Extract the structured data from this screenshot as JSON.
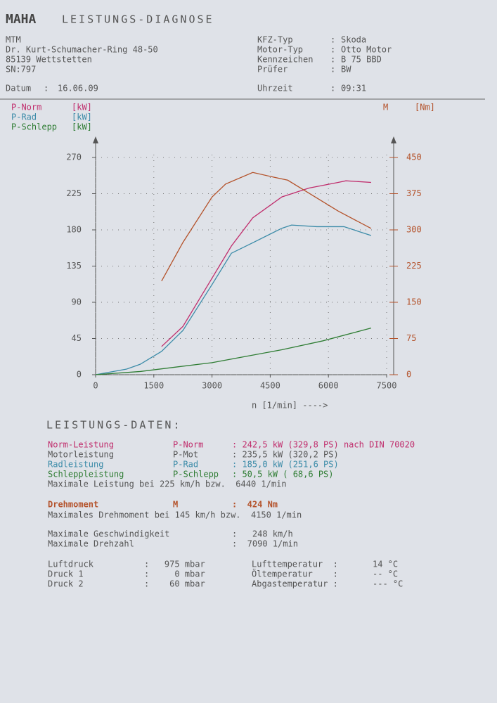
{
  "header": {
    "logo": "MAHA",
    "title": "LEISTUNGS-DIAGNOSE",
    "address": [
      "MTM",
      "Dr. Kurt-Schumacher-Ring 48-50",
      "85139 Wettstetten",
      "SN:797"
    ],
    "date": {
      "label": "Datum",
      "value": "16.06.09"
    },
    "info": [
      {
        "label": "KFZ-Typ",
        "value": "Skoda"
      },
      {
        "label": "Motor-Typ",
        "value": "Otto Motor"
      },
      {
        "label": "Kennzeichen",
        "value": "B 75 BBD"
      },
      {
        "label": "Prüfer",
        "value": "BW"
      }
    ],
    "time": {
      "label": "Uhrzeit",
      "value": "09:31"
    }
  },
  "chart_data": {
    "type": "line",
    "xlabel": "n [1/min] ---->",
    "xlim": [
      0,
      7500
    ],
    "xticks": [
      0,
      1500,
      3000,
      4500,
      6000,
      7500
    ],
    "ylim": [
      0,
      270
    ],
    "yticks": [
      0,
      45,
      90,
      135,
      180,
      225,
      270
    ],
    "y2lim": [
      0,
      450
    ],
    "y2ticks": [
      0,
      75,
      150,
      225,
      300,
      375,
      450
    ],
    "grid": true,
    "series": [
      {
        "name": "P-Norm",
        "unit": "[kW]",
        "color": "#c02d6c",
        "x": [
          1700,
          2250,
          3000,
          3500,
          4050,
          4800,
          5500,
          6250,
          6450,
          7100
        ],
        "values": [
          35,
          60,
          120,
          160,
          195,
          221,
          232,
          239,
          241,
          239
        ]
      },
      {
        "name": "P-Rad",
        "unit": "[kW]",
        "color": "#3b8ba8",
        "x": [
          0,
          800,
          1150,
          1700,
          2250,
          3000,
          3500,
          4050,
          4800,
          5050,
          5700,
          6400,
          7100
        ],
        "values": [
          0,
          7,
          13,
          29,
          55,
          112,
          151,
          164,
          182,
          186,
          184,
          184,
          173
        ]
      },
      {
        "name": "P-Schlepp",
        "unit": "[kW]",
        "color": "#2f7d34",
        "x": [
          0,
          1150,
          3000,
          4800,
          5850,
          7100
        ],
        "values": [
          0,
          4,
          15,
          31,
          42,
          58
        ]
      },
      {
        "name": "M",
        "unit": "[Nm]",
        "color": "#b4522a",
        "axis": "y2",
        "x": [
          1700,
          2250,
          3000,
          3350,
          4050,
          4600,
          4950,
          5500,
          6250,
          7100
        ],
        "values": [
          194,
          274,
          368,
          395,
          419,
          409,
          403,
          376,
          339,
          303
        ]
      }
    ]
  },
  "results": {
    "title": "LEISTUNGS-DATEN:",
    "power": [
      [
        "Norm-Leistung",
        "P-Norm",
        ": 242,5 kW (329,8 PS) nach DIN 70020"
      ],
      [
        "Motorleistung",
        "P-Mot",
        ": 235,5 kW (320,2 PS)"
      ],
      [
        "Radleistung",
        "P-Rad",
        ": 185,0 kW (251,6 PS)"
      ],
      [
        "Schleppleistung",
        "P-Schlepp",
        ": 50,5 kW ( 68,6 PS)"
      ]
    ],
    "max_power": "Maximale Leistung bei 225 km/h bzw.  6440 1/min",
    "torque": [
      "Drehmoment",
      "M",
      ":  424 Nm"
    ],
    "max_torque": "Maximales Drehmoment bei 145 km/h bzw.  4150 1/min",
    "speed": [
      [
        "Maximale Geschwindigkeit",
        ":   248 km/h"
      ],
      [
        "Maximale Drehzahl",
        ":  7090 1/min"
      ]
    ],
    "ambient": [
      [
        "Luftdruck",
        ":   975 mbar",
        "Lufttemperatur  :",
        "14 °C"
      ],
      [
        "Druck 1",
        ":     0 mbar",
        "Öltemperatur    :",
        "-- °C"
      ],
      [
        "Druck 2",
        ":    60 mbar",
        "Abgastemperatur :",
        "--- °C"
      ]
    ]
  }
}
